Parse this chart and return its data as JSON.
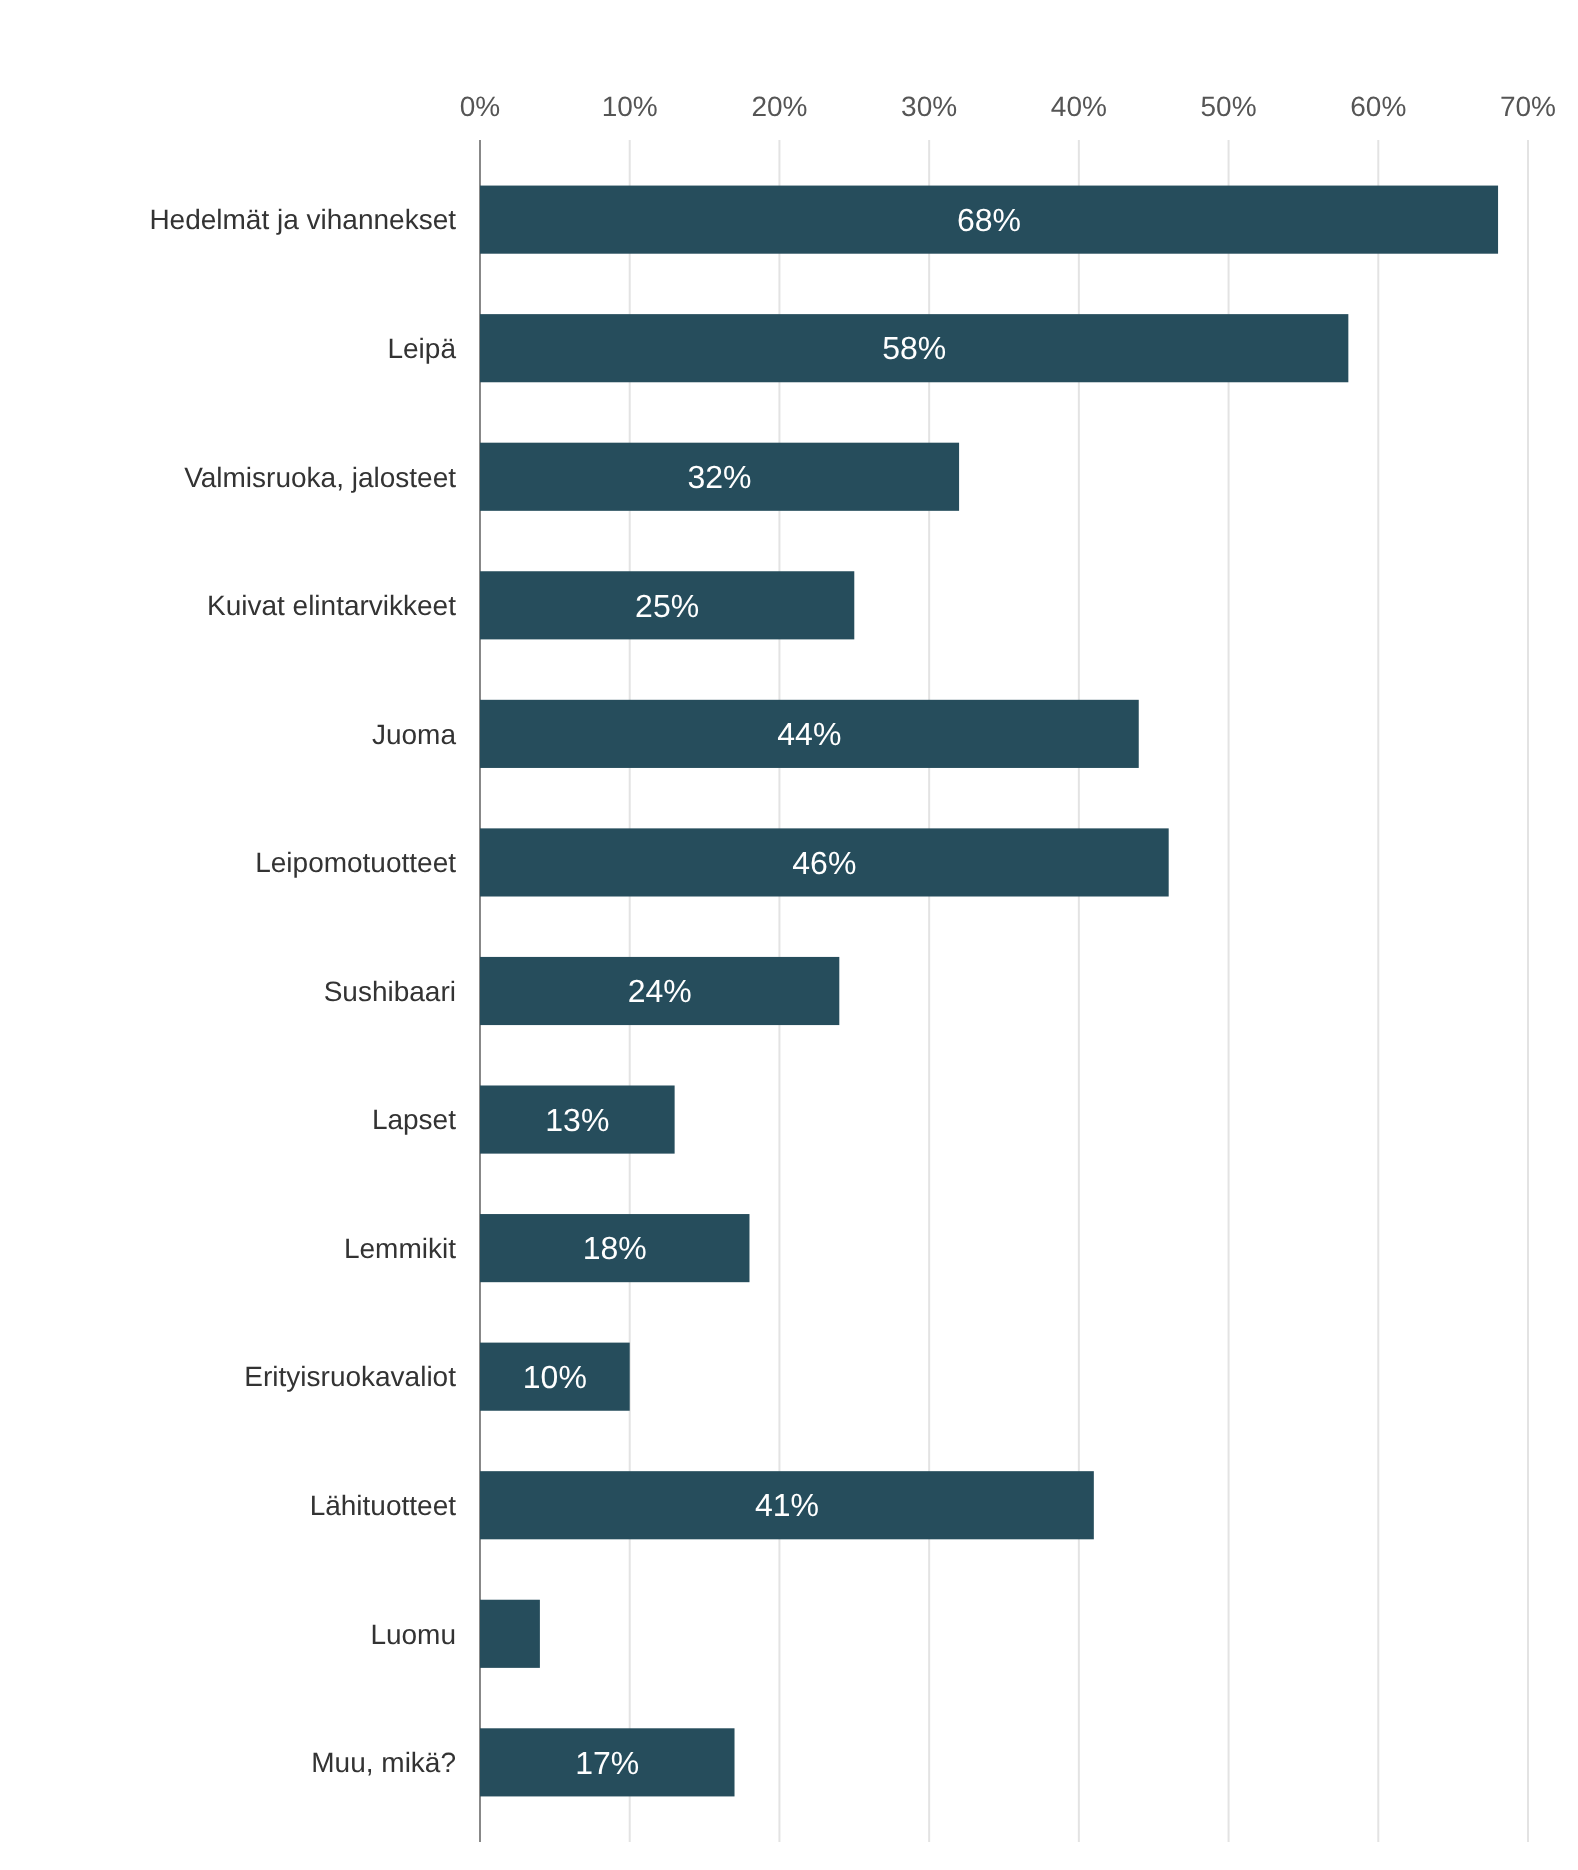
{
  "chart_data": {
    "type": "bar",
    "orientation": "horizontal",
    "categories": [
      "Hedelmät ja vihannekset",
      "Leipä",
      "Valmisruoka, jalosteet",
      "Kuivat elintarvikkeet",
      "Juoma",
      "Leipomotuotteet",
      "Sushibaari",
      "Lapset",
      "Lemmikit",
      "Erityisruokavaliot",
      "Lähituotteet",
      "Luomu",
      "Muu, mikä?"
    ],
    "values": [
      68,
      58,
      32,
      25,
      44,
      46,
      24,
      13,
      18,
      10,
      41,
      4,
      17
    ],
    "value_labels": [
      "68%",
      "58%",
      "32%",
      "25%",
      "44%",
      "46%",
      "24%",
      "13%",
      "18%",
      "10%",
      "41%",
      null,
      "17%"
    ],
    "color": "#264d5c",
    "xlim": [
      0,
      70
    ],
    "xticks": [
      {
        "value": 0,
        "label": "0%"
      },
      {
        "value": 10,
        "label": "10%"
      },
      {
        "value": 20,
        "label": "20%"
      },
      {
        "value": 30,
        "label": "30%"
      },
      {
        "value": 40,
        "label": "40%"
      },
      {
        "value": 50,
        "label": "50%"
      },
      {
        "value": 60,
        "label": "60%"
      },
      {
        "value": 70,
        "label": "70%"
      }
    ],
    "grid": "x"
  }
}
